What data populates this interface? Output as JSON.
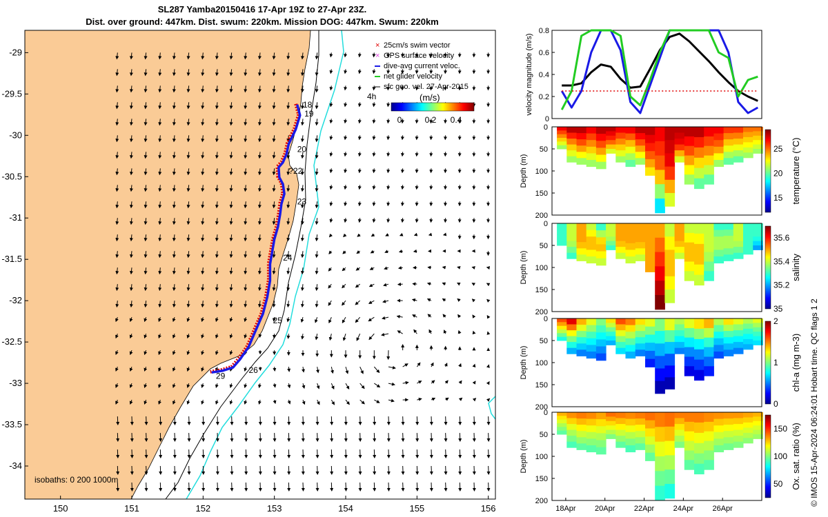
{
  "header": {
    "title_line1": "SL287 Yamba20150416 17-Apr 19Z to 27-Apr 23Z.",
    "title_line2": "Dist. over ground: 447km. Dist. swum: 220km. Mission DOG: 447km. Swum: 220km"
  },
  "colors": {
    "land": "#FACB96",
    "track_red": "#E00000",
    "track_blue": "#1A1AE6",
    "isobath_cyan": "#22DDDD",
    "gps_magenta": "#E040E0",
    "net_green": "#22CC22",
    "velocity_black": "#000000"
  },
  "chart_data": [
    {
      "id": "map",
      "type": "scatter",
      "x_ticks": [
        "150",
        "151",
        "152",
        "153",
        "154",
        "155",
        "156"
      ],
      "y_ticks": [
        "-29",
        "-29.5",
        "-30",
        "-30.5",
        "-31",
        "-31.5",
        "-32",
        "-32.5",
        "-33",
        "-33.5",
        "-34"
      ],
      "xlim": [
        149.5,
        156.1
      ],
      "ylim": [
        -34.4,
        -28.73
      ],
      "legend": [
        {
          "label": "25cm/s swim vector",
          "color": "#E00000",
          "marker": "cross"
        },
        {
          "label": "GPS surface velocity",
          "color": "#E040E0",
          "marker": "cross"
        },
        {
          "label": "dive-avg current veloc.",
          "color": "#1A1AE6",
          "marker": "dash"
        },
        {
          "label": "net glider velocity",
          "color": "#22CC22",
          "marker": "dash"
        },
        {
          "label": "sfc geo. vel. 27-Apr-2015",
          "color": "#000000",
          "marker": "arrow"
        }
      ],
      "legend_note": "4h",
      "colorbar": {
        "label": "(m/s)",
        "ticks": [
          "0",
          "0.2",
          "0.4"
        ]
      },
      "isobath_note": "isobaths: 0   200  1000m",
      "track": [
        [
          153.3,
          -29.62
        ],
        [
          153.34,
          -29.75
        ],
        [
          153.28,
          -29.92
        ],
        [
          153.18,
          -30.1
        ],
        [
          153.15,
          -30.22
        ],
        [
          153.1,
          -30.32
        ],
        [
          153.04,
          -30.38
        ],
        [
          153.05,
          -30.5
        ],
        [
          153.1,
          -30.58
        ],
        [
          153.12,
          -30.7
        ],
        [
          153.08,
          -30.82
        ],
        [
          153.06,
          -30.95
        ],
        [
          153.03,
          -31.1
        ],
        [
          152.98,
          -31.25
        ],
        [
          152.95,
          -31.4
        ],
        [
          152.92,
          -31.55
        ],
        [
          152.92,
          -31.75
        ],
        [
          152.88,
          -31.95
        ],
        [
          152.82,
          -32.15
        ],
        [
          152.72,
          -32.35
        ],
        [
          152.62,
          -32.55
        ],
        [
          152.5,
          -32.7
        ],
        [
          152.4,
          -32.8
        ],
        [
          152.25,
          -32.84
        ],
        [
          152.1,
          -32.86
        ]
      ],
      "day_labels": [
        {
          "label": "18",
          "lon": 153.4,
          "lat": -29.63
        },
        {
          "label": "19",
          "lon": 153.42,
          "lat": -29.74
        },
        {
          "label": "20",
          "lon": 153.32,
          "lat": -30.17
        },
        {
          "label": "?22",
          "lon": 153.2,
          "lat": -30.43
        },
        {
          "label": "23",
          "lon": 153.32,
          "lat": -30.8
        },
        {
          "label": "24",
          "lon": 153.12,
          "lat": -31.48
        },
        {
          "label": "25",
          "lon": 152.98,
          "lat": -32.24
        },
        {
          "label": "26",
          "lon": 152.64,
          "lat": -32.84
        },
        {
          "label": "29",
          "lon": 152.18,
          "lat": -32.91
        }
      ]
    },
    {
      "id": "velocity",
      "type": "line",
      "ylabel": "velocity magnitude (m/s)",
      "ylim": [
        0,
        0.8
      ],
      "yticks": [
        "0",
        "0.2",
        "0.4",
        "0.6",
        "0.8"
      ],
      "x": [
        17.8,
        18.3,
        18.8,
        19.3,
        19.8,
        20.3,
        20.8,
        21.3,
        21.8,
        22.3,
        22.8,
        23.3,
        23.8,
        24.3,
        24.8,
        25.3,
        25.8,
        26.3,
        26.8,
        27.3,
        27.8
      ],
      "series": [
        {
          "color": "#000000",
          "values": [
            0.3,
            0.3,
            0.32,
            0.42,
            0.49,
            0.47,
            0.36,
            0.28,
            0.29,
            0.45,
            0.62,
            0.74,
            0.77,
            0.7,
            0.61,
            0.52,
            0.42,
            0.33,
            0.25,
            0.2,
            0.16
          ]
        },
        {
          "color": "#1A1AE6",
          "values": [
            0.25,
            0.1,
            0.25,
            0.6,
            0.8,
            0.8,
            0.62,
            0.15,
            0.05,
            0.3,
            0.55,
            0.8,
            0.8,
            0.8,
            0.8,
            0.8,
            0.8,
            0.6,
            0.15,
            0.05,
            0.1
          ]
        },
        {
          "color": "#22CC22",
          "values": [
            0.08,
            0.25,
            0.75,
            0.8,
            0.8,
            0.8,
            0.75,
            0.2,
            0.12,
            0.35,
            0.6,
            0.8,
            0.8,
            0.8,
            0.8,
            0.8,
            0.6,
            0.55,
            0.2,
            0.35,
            0.38
          ]
        },
        {
          "color": "#E00000",
          "values": [
            0.25,
            0.25,
            0.25,
            0.25,
            0.25,
            0.25,
            0.25,
            0.25,
            0.25,
            0.25,
            0.25,
            0.25,
            0.25,
            0.25,
            0.25,
            0.25,
            0.25,
            0.25,
            0.25,
            0.25,
            0.25
          ]
        }
      ]
    },
    {
      "id": "temperature",
      "type": "heatmap",
      "ylabel": "Depth (m)",
      "cbar_label": "temperature (°C)",
      "ylim": [
        200,
        0
      ],
      "yticks": [
        "0",
        "50",
        "100",
        "150",
        "200"
      ],
      "clim": [
        12,
        29
      ],
      "cticks": [
        "15",
        "20",
        "25"
      ],
      "x": [
        17.8,
        18.3,
        18.8,
        19.3,
        19.8,
        20.3,
        20.8,
        21.3,
        21.8,
        22.3,
        22.8,
        23.3,
        23.8,
        24.3,
        24.8,
        25.3,
        25.8,
        26.3,
        26.8,
        27.3,
        27.8
      ],
      "max_depth": [
        50,
        80,
        85,
        90,
        95,
        60,
        80,
        90,
        85,
        110,
        195,
        180,
        80,
        130,
        140,
        130,
        90,
        85,
        80,
        70,
        60
      ],
      "profiles": [
        [
          27,
          24,
          21
        ],
        [
          28,
          24,
          21
        ],
        [
          28,
          25,
          21
        ],
        [
          27,
          24,
          21
        ],
        [
          28,
          25,
          21
        ],
        [
          28,
          26,
          22
        ],
        [
          27,
          24,
          21
        ],
        [
          27,
          23,
          20
        ],
        [
          28,
          25,
          21
        ],
        [
          28,
          26,
          23
        ],
        [
          27,
          25,
          18
        ],
        [
          28,
          27,
          22
        ],
        [
          28,
          27,
          22
        ],
        [
          28,
          25,
          21
        ],
        [
          28,
          24,
          20
        ],
        [
          27,
          24,
          20
        ],
        [
          27,
          25,
          21
        ],
        [
          26,
          23,
          20
        ],
        [
          26,
          23,
          20
        ],
        [
          25,
          23,
          21
        ],
        [
          25,
          23,
          21
        ]
      ]
    },
    {
      "id": "salinity",
      "type": "heatmap",
      "ylabel": "Depth (m)",
      "cbar_label": "salinity",
      "ylim": [
        200,
        0
      ],
      "yticks": [
        "0",
        "50",
        "100",
        "150",
        "200"
      ],
      "clim": [
        35.0,
        35.7
      ],
      "cticks": [
        "35",
        "35.2",
        "35.4",
        "35.6"
      ],
      "x": [
        17.8,
        18.3,
        18.8,
        19.3,
        19.8,
        20.3,
        20.8,
        21.3,
        21.8,
        22.3,
        22.8,
        23.3,
        23.8,
        24.3,
        24.8,
        25.3,
        25.8,
        26.3,
        26.8,
        27.3,
        27.8
      ],
      "max_depth": [
        50,
        80,
        85,
        90,
        95,
        60,
        80,
        90,
        85,
        110,
        195,
        180,
        80,
        130,
        140,
        130,
        90,
        85,
        80,
        70,
        60
      ],
      "profiles": [
        [
          35.3,
          35.3,
          35.3
        ],
        [
          35.4,
          35.4,
          35.3
        ],
        [
          35.5,
          35.5,
          35.4
        ],
        [
          35.4,
          35.5,
          35.4
        ],
        [
          35.3,
          35.5,
          35.4
        ],
        [
          35.4,
          35.4,
          35.3
        ],
        [
          35.5,
          35.5,
          35.4
        ],
        [
          35.5,
          35.5,
          35.4
        ],
        [
          35.5,
          35.5,
          35.4
        ],
        [
          35.5,
          35.5,
          35.5
        ],
        [
          35.5,
          35.6,
          35.7
        ],
        [
          35.4,
          35.5,
          35.4
        ],
        [
          35.5,
          35.5,
          35.4
        ],
        [
          35.4,
          35.5,
          35.4
        ],
        [
          35.4,
          35.5,
          35.4
        ],
        [
          35.4,
          35.4,
          35.3
        ],
        [
          35.3,
          35.4,
          35.3
        ],
        [
          35.3,
          35.4,
          35.3
        ],
        [
          35.4,
          35.4,
          35.3
        ],
        [
          35.3,
          35.3,
          35.3
        ],
        [
          35.3,
          35.3,
          35.2
        ]
      ]
    },
    {
      "id": "chla",
      "type": "heatmap",
      "ylabel": "Depth (m)",
      "cbar_label": "chl-a (mg m-3)",
      "ylim": [
        200,
        0
      ],
      "yticks": [
        "0",
        "50",
        "100",
        "150",
        "200"
      ],
      "clim": [
        0,
        2
      ],
      "cticks": [
        "0",
        "1",
        "2"
      ],
      "x": [
        17.8,
        18.3,
        18.8,
        19.3,
        19.8,
        20.3,
        20.8,
        21.3,
        21.8,
        22.3,
        22.8,
        23.3,
        23.8,
        24.3,
        24.8,
        25.3,
        25.8,
        26.3,
        26.8,
        27.3,
        27.8
      ],
      "max_depth": [
        50,
        80,
        85,
        90,
        95,
        60,
        80,
        90,
        85,
        110,
        170,
        160,
        80,
        130,
        140,
        130,
        90,
        85,
        80,
        70,
        60
      ],
      "profiles": [
        [
          1.6,
          1.2,
          0.8
        ],
        [
          1.8,
          1.1,
          0.6
        ],
        [
          1.4,
          0.9,
          0.5
        ],
        [
          1.2,
          0.8,
          0.5
        ],
        [
          1.0,
          0.7,
          0.4
        ],
        [
          1.3,
          0.9,
          0.6
        ],
        [
          1.6,
          1.1,
          0.7
        ],
        [
          1.5,
          1.0,
          0.6
        ],
        [
          1.3,
          0.9,
          0.5
        ],
        [
          1.2,
          0.7,
          0.3
        ],
        [
          1.0,
          0.5,
          0.1
        ],
        [
          1.2,
          0.5,
          0.1
        ],
        [
          1.1,
          0.8,
          0.5
        ],
        [
          1.2,
          0.6,
          0.2
        ],
        [
          1.3,
          0.6,
          0.2
        ],
        [
          1.4,
          0.7,
          0.3
        ],
        [
          1.1,
          0.7,
          0.4
        ],
        [
          1.3,
          0.8,
          0.5
        ],
        [
          1.2,
          0.8,
          0.5
        ],
        [
          1.1,
          0.8,
          0.6
        ],
        [
          1.2,
          0.9,
          0.7
        ]
      ]
    },
    {
      "id": "oxygen",
      "type": "heatmap",
      "ylabel": "Depth (m)",
      "cbar_label": "Ox. sat. ratio (%)",
      "ylim": [
        200,
        0
      ],
      "yticks": [
        "0",
        "50",
        "100",
        "150",
        "200"
      ],
      "clim": [
        25,
        175
      ],
      "cticks": [
        "50",
        "100",
        "150"
      ],
      "x": [
        17.8,
        18.3,
        18.8,
        19.3,
        19.8,
        20.3,
        20.8,
        21.3,
        21.8,
        22.3,
        22.8,
        23.3,
        23.8,
        24.3,
        24.8,
        25.3,
        25.8,
        26.3,
        26.8,
        27.3,
        27.8
      ],
      "max_depth": [
        50,
        80,
        85,
        90,
        95,
        60,
        80,
        90,
        85,
        110,
        200,
        195,
        80,
        130,
        140,
        130,
        90,
        85,
        80,
        70,
        60
      ],
      "profiles": [
        [
          130,
          110,
          95
        ],
        [
          135,
          110,
          92
        ],
        [
          138,
          115,
          95
        ],
        [
          136,
          112,
          94
        ],
        [
          132,
          110,
          95
        ],
        [
          140,
          120,
          100
        ],
        [
          138,
          115,
          95
        ],
        [
          136,
          112,
          92
        ],
        [
          138,
          115,
          95
        ],
        [
          140,
          118,
          96
        ],
        [
          138,
          110,
          88
        ],
        [
          140,
          112,
          85
        ],
        [
          138,
          118,
          100
        ],
        [
          138,
          115,
          95
        ],
        [
          138,
          112,
          92
        ],
        [
          136,
          112,
          94
        ],
        [
          135,
          115,
          98
        ],
        [
          134,
          114,
          98
        ],
        [
          134,
          115,
          100
        ],
        [
          132,
          116,
          102
        ],
        [
          130,
          116,
          104
        ]
      ]
    }
  ],
  "time_axis": {
    "ticks": [
      "18Apr",
      "20Apr",
      "22Apr",
      "24Apr",
      "26Apr"
    ],
    "values": [
      18,
      20,
      22,
      24,
      26
    ]
  },
  "side_caption": "© IMOS 15-Apr-2024 06:24:01 Hobart time. QC flags 1  2"
}
